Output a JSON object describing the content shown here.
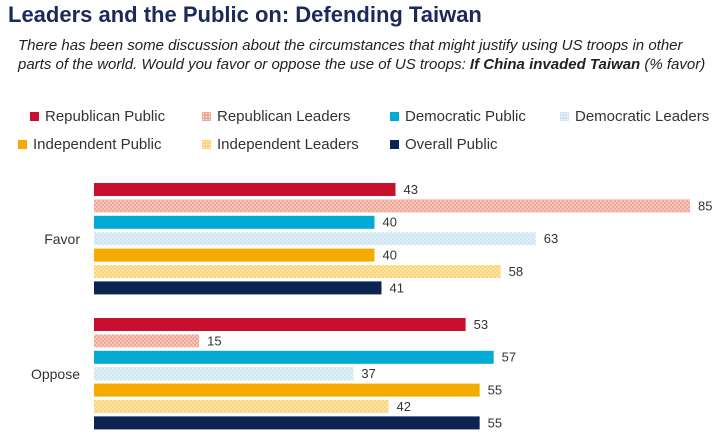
{
  "title": "Leaders and the Public on: Defending Taiwan",
  "subtitle": {
    "text": "There has been some discussion about the circumstances that might justify using US troops in other parts of the world. Would you favor or oppose the use of US troops: ",
    "bold": "If China invaded Taiwan",
    "suffix": " (% favor)"
  },
  "colors": {
    "republican_public": "#c8102e",
    "republican_leaders": "#f0a898",
    "democratic_public": "#00aad4",
    "democratic_leaders": "#cfe6f3",
    "independent_public": "#f5ab00",
    "independent_leaders": "#fbd57a",
    "overall_public": "#0b2454"
  },
  "chart_data": {
    "type": "bar",
    "orientation": "horizontal",
    "categories": [
      "Favor",
      "Oppose"
    ],
    "series": [
      {
        "name": "Republican Public",
        "values": [
          43,
          53
        ],
        "pattern": "solid"
      },
      {
        "name": "Republican Leaders",
        "values": [
          85,
          15
        ],
        "pattern": "dotted"
      },
      {
        "name": "Democratic Public",
        "values": [
          40,
          57
        ],
        "pattern": "solid"
      },
      {
        "name": "Democratic Leaders",
        "values": [
          63,
          37
        ],
        "pattern": "dotted"
      },
      {
        "name": "Independent Public",
        "values": [
          40,
          55
        ],
        "pattern": "solid"
      },
      {
        "name": "Independent Leaders",
        "values": [
          58,
          42
        ],
        "pattern": "dotted"
      },
      {
        "name": "Overall Public",
        "values": [
          41,
          55
        ],
        "pattern": "solid"
      }
    ],
    "xlim": [
      0,
      85
    ],
    "grid": false,
    "legend_position": "top"
  }
}
